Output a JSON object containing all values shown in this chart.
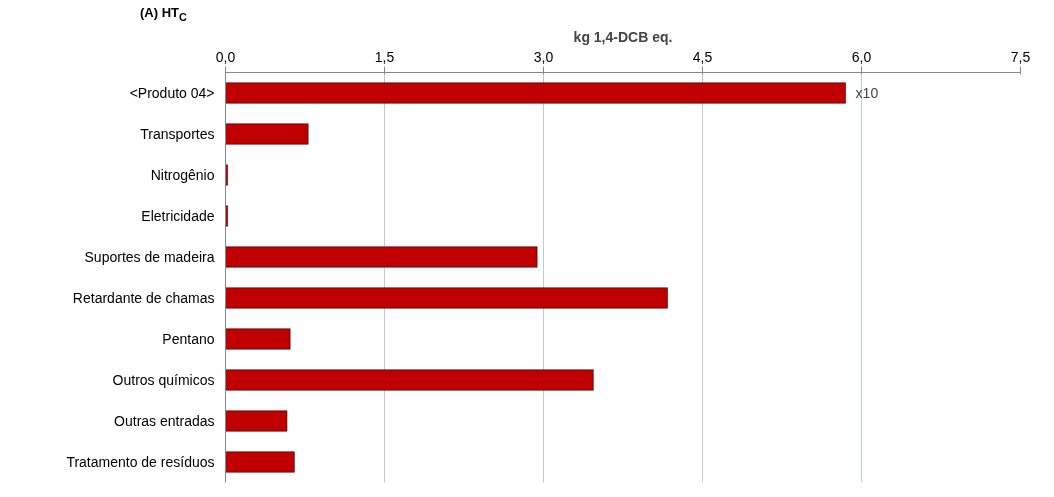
{
  "chart_data": {
    "type": "bar",
    "orientation": "horizontal",
    "title": "(A) HT$_{C}$",
    "xlabel": "kg 1,4-DCB eq.",
    "categories": [
      "<Produto 04>",
      "Transportes",
      "Nitrogênio",
      "Eletricidade",
      "Suportes de madeira",
      "Retardante de chamas",
      "Pentano",
      "Outros químicos",
      "Outras entradas",
      "Tratamento de resíduos"
    ],
    "values": [
      5.85,
      0.78,
      0.02,
      0.02,
      2.94,
      4.17,
      0.61,
      3.47,
      0.58,
      0.65
    ],
    "color": "#c00000",
    "xlim": [
      0,
      7.5
    ],
    "xticks": [
      {
        "value": 0,
        "label": "0,0"
      },
      {
        "value": 1.5,
        "label": "1,5"
      },
      {
        "value": 3,
        "label": "3,0"
      },
      {
        "value": 4.5,
        "label": "4,5"
      },
      {
        "value": 6,
        "label": "6,0"
      },
      {
        "value": 7.5,
        "label": "7,5"
      }
    ],
    "grid": "x",
    "annotations": [
      {
        "text": "x10",
        "x": 5.85,
        "y": "<Produto 04>"
      }
    ]
  }
}
